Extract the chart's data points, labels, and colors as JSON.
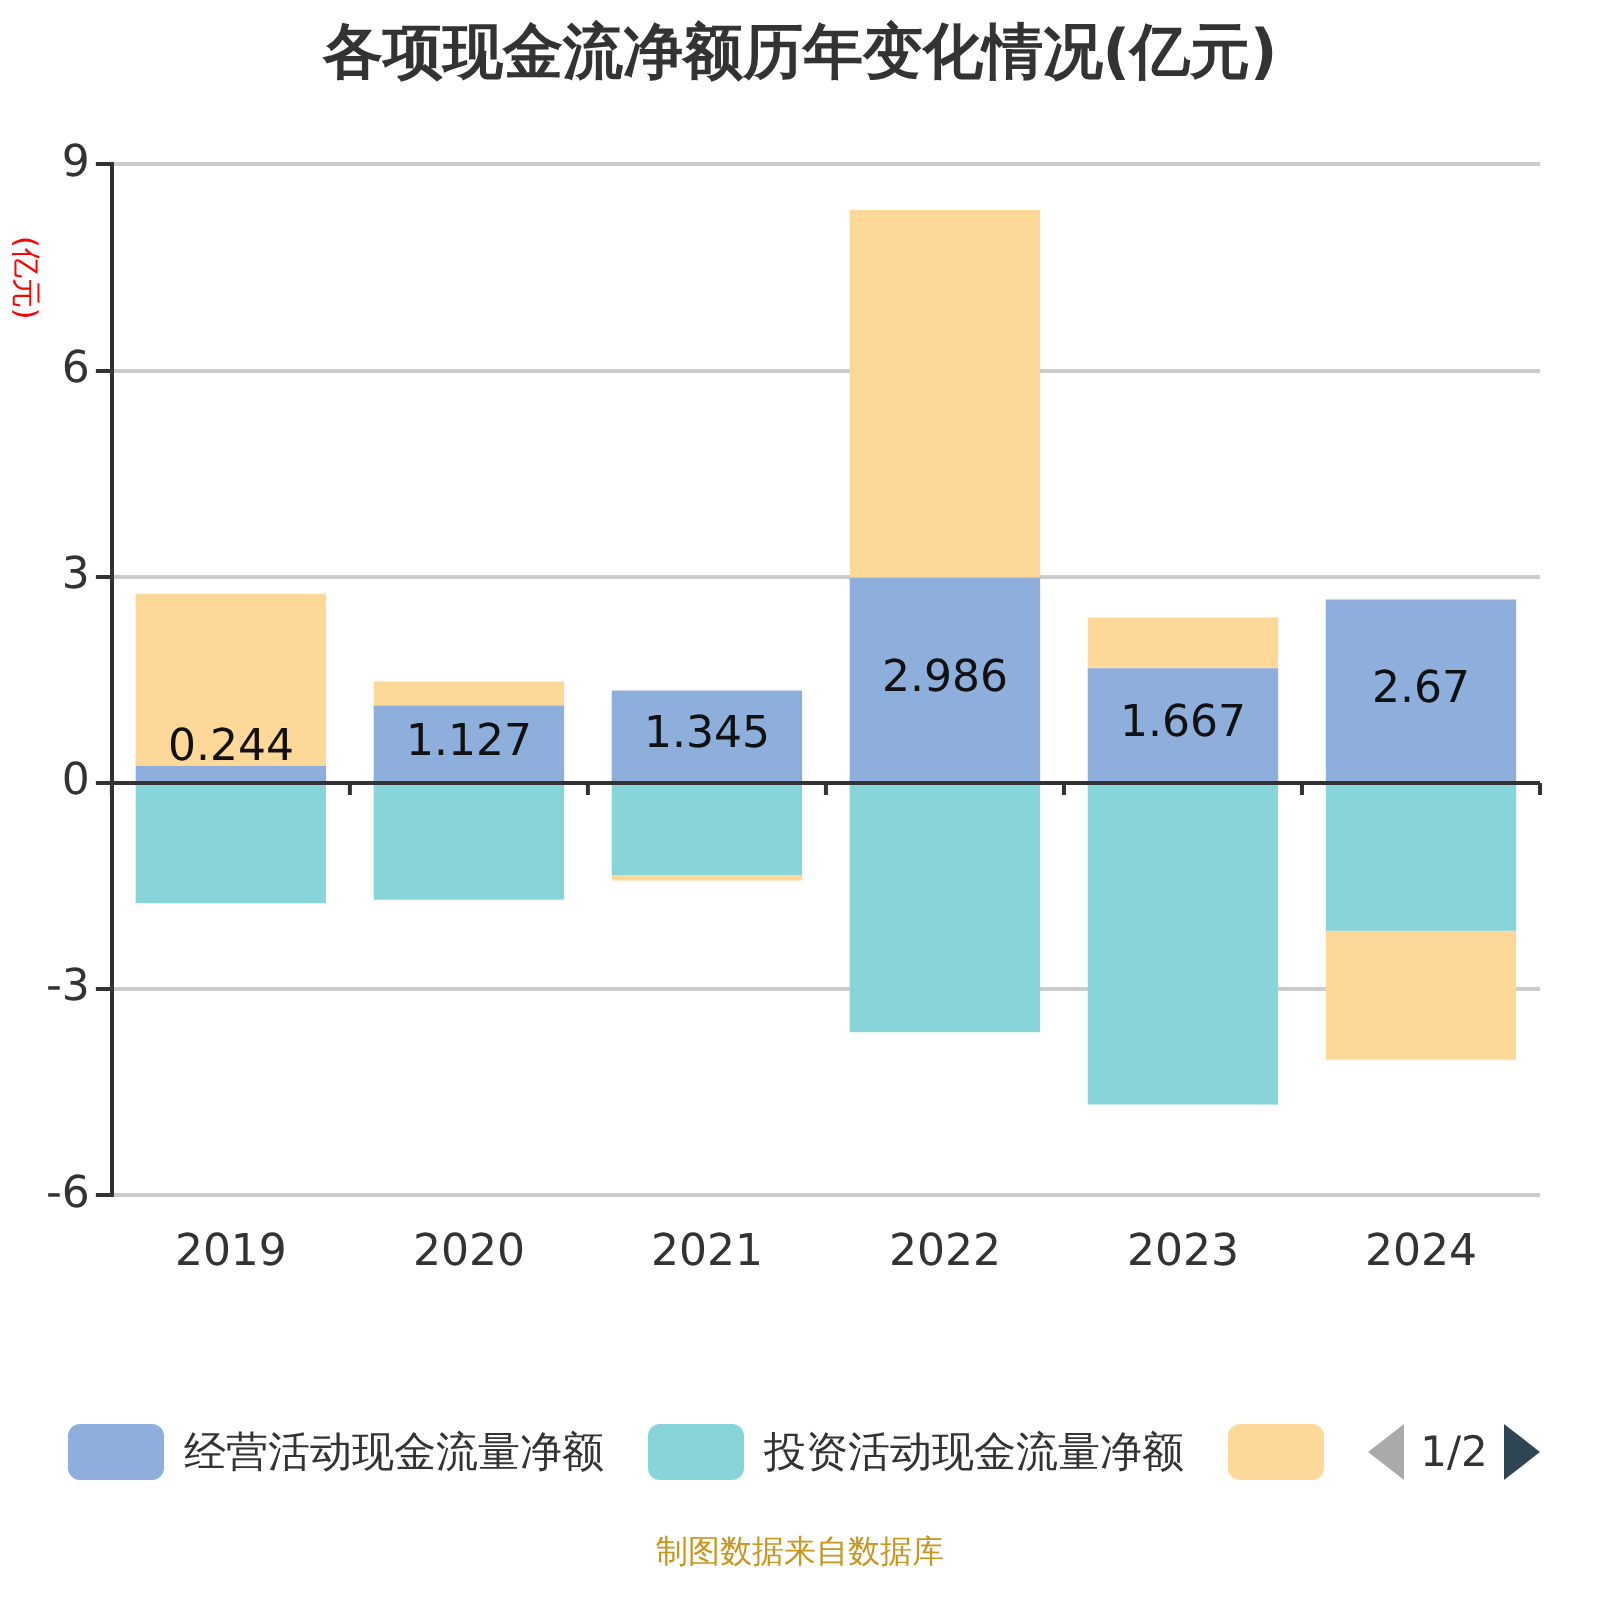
{
  "chart_data": {
    "type": "bar",
    "title": "各项现金流净额历年变化情况(亿元)",
    "ylabel": "(亿元)",
    "categories": [
      "2019",
      "2020",
      "2021",
      "2022",
      "2023",
      "2024"
    ],
    "stacked": true,
    "series": [
      {
        "name": "经营活动现金流量净额",
        "color": "#8eaedb",
        "values": [
          0.244,
          1.127,
          1.345,
          2.986,
          1.667,
          2.67
        ],
        "value_labels": [
          "0.244",
          "1.127",
          "1.345",
          "2.986",
          "1.667",
          "2.67"
        ]
      },
      {
        "name": "投资活动现金流量净额",
        "color": "#87d5d8",
        "values": [
          -1.75,
          -1.7,
          -1.34,
          -3.63,
          -4.68,
          -2.15
        ]
      },
      {
        "color": "#fed898",
        "values": [
          2.51,
          0.35,
          -0.08,
          5.35,
          0.74,
          -1.88
        ]
      }
    ],
    "ylim": [
      -6,
      9
    ],
    "yticks": [
      -6,
      -3,
      0,
      3,
      6,
      9
    ],
    "grid": "y",
    "legend": "bottom",
    "annotations": [
      "1/2",
      "制图数据来自数据库"
    ]
  }
}
